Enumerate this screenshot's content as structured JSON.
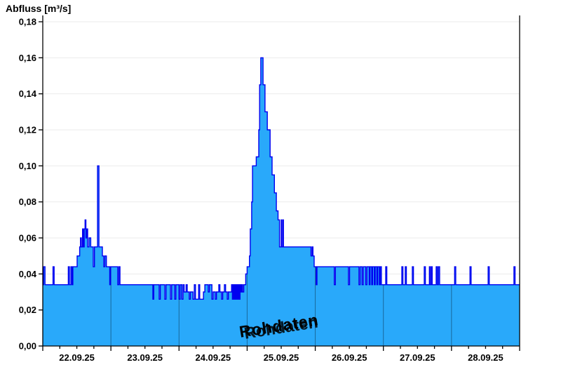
{
  "header": {
    "title": "Abfluss [m³/s]"
  },
  "watermark": {
    "text": "Rohdaten",
    "rotation_deg": -9
  },
  "colors": {
    "background": "#FFFFFF",
    "area_fill": "#29A9FA",
    "area_line": "#0000F0",
    "h_grid": "#EBEBEB",
    "day_line_on_fill": "rgba(0,0,0,0.38)",
    "axis": "#000000",
    "watermark_fill": "#FFFFFF",
    "watermark_shadow": "#4D4D4D"
  },
  "chart_data": {
    "type": "area",
    "title": "Abfluss [m³/s]",
    "ylabel": "Abfluss [m³/s]",
    "annotation": "Rohdaten",
    "grid": {
      "horizontal": true,
      "vertical_day_lines_over_fill": true
    },
    "y_axis": {
      "min": 0.0,
      "max": 0.18,
      "tick_step": 0.02,
      "tick_labels": [
        "0,00",
        "0,02",
        "0,04",
        "0,06",
        "0,08",
        "0,10",
        "0,12",
        "0,14",
        "0,16",
        "0,18"
      ]
    },
    "x_axis": {
      "day_labels": [
        "22.09.25",
        "23.09.25",
        "24.09.25",
        "25.09.25",
        "26.09.25",
        "27.09.25",
        "28.09.25"
      ],
      "range_hours": [
        0,
        168
      ],
      "x_unit": "hours since 22.09.25 00:00",
      "major_tick_hours": 24,
      "minor_tick_hours": 6
    },
    "series": [
      {
        "name": "Abfluss Rohdaten",
        "unit": "m³/s",
        "step": true,
        "points": [
          [
            0,
            0.034
          ],
          [
            0.3,
            0.044
          ],
          [
            0.8,
            0.034
          ],
          [
            3.6,
            0.044
          ],
          [
            4.0,
            0.034
          ],
          [
            9.0,
            0.044
          ],
          [
            9.4,
            0.034
          ],
          [
            9.9,
            0.044
          ],
          [
            10.3,
            0.034
          ],
          [
            10.6,
            0.044
          ],
          [
            12.1,
            0.05
          ],
          [
            13.0,
            0.055
          ],
          [
            13.3,
            0.06
          ],
          [
            13.6,
            0.055
          ],
          [
            14.0,
            0.065
          ],
          [
            14.3,
            0.055
          ],
          [
            14.6,
            0.065
          ],
          [
            14.9,
            0.07
          ],
          [
            15.2,
            0.06
          ],
          [
            15.5,
            0.065
          ],
          [
            15.8,
            0.055
          ],
          [
            16.3,
            0.06
          ],
          [
            16.9,
            0.055
          ],
          [
            17.8,
            0.044
          ],
          [
            18.2,
            0.055
          ],
          [
            19.3,
            0.1
          ],
          [
            19.8,
            0.055
          ],
          [
            21.0,
            0.05
          ],
          [
            21.5,
            0.044
          ],
          [
            21.9,
            0.05
          ],
          [
            22.4,
            0.044
          ],
          [
            23.6,
            0.034
          ],
          [
            23.9,
            0.044
          ],
          [
            26.4,
            0.034
          ],
          [
            26.8,
            0.044
          ],
          [
            27.2,
            0.034
          ],
          [
            38.8,
            0.026
          ],
          [
            39.1,
            0.034
          ],
          [
            41.0,
            0.026
          ],
          [
            41.4,
            0.034
          ],
          [
            43.0,
            0.026
          ],
          [
            43.4,
            0.034
          ],
          [
            45.0,
            0.026
          ],
          [
            45.4,
            0.034
          ],
          [
            46.5,
            0.026
          ],
          [
            46.9,
            0.034
          ],
          [
            48.0,
            0.026
          ],
          [
            48.4,
            0.034
          ],
          [
            49.0,
            0.026
          ],
          [
            49.4,
            0.034
          ],
          [
            49.8,
            0.03
          ],
          [
            50.5,
            0.034
          ],
          [
            50.9,
            0.03
          ],
          [
            51.6,
            0.026
          ],
          [
            52.0,
            0.03
          ],
          [
            52.9,
            0.026
          ],
          [
            53.4,
            0.034
          ],
          [
            53.8,
            0.026
          ],
          [
            54.9,
            0.034
          ],
          [
            55.3,
            0.026
          ],
          [
            56.6,
            0.03
          ],
          [
            57.1,
            0.034
          ],
          [
            58.3,
            0.03
          ],
          [
            58.7,
            0.034
          ],
          [
            59.6,
            0.026
          ],
          [
            60.0,
            0.03
          ],
          [
            60.8,
            0.026
          ],
          [
            61.2,
            0.03
          ],
          [
            62.0,
            0.034
          ],
          [
            62.4,
            0.03
          ],
          [
            63.0,
            0.026
          ],
          [
            63.4,
            0.03
          ],
          [
            64.0,
            0.034
          ],
          [
            64.4,
            0.03
          ],
          [
            65.0,
            0.026
          ],
          [
            65.4,
            0.03
          ],
          [
            66.5,
            0.034
          ],
          [
            66.8,
            0.026
          ],
          [
            67.1,
            0.034
          ],
          [
            67.4,
            0.026
          ],
          [
            67.7,
            0.034
          ],
          [
            68.0,
            0.026
          ],
          [
            68.3,
            0.034
          ],
          [
            68.6,
            0.026
          ],
          [
            68.9,
            0.034
          ],
          [
            69.2,
            0.026
          ],
          [
            69.5,
            0.034
          ],
          [
            69.8,
            0.03
          ],
          [
            70.1,
            0.034
          ],
          [
            70.4,
            0.03
          ],
          [
            70.8,
            0.034
          ],
          [
            71.5,
            0.04
          ],
          [
            72.0,
            0.044
          ],
          [
            72.8,
            0.05
          ],
          [
            73.1,
            0.065
          ],
          [
            73.6,
            0.08
          ],
          [
            73.9,
            0.1
          ],
          [
            75.2,
            0.105
          ],
          [
            76.1,
            0.12
          ],
          [
            76.4,
            0.145
          ],
          [
            76.8,
            0.16
          ],
          [
            77.6,
            0.145
          ],
          [
            78.3,
            0.13
          ],
          [
            79.1,
            0.12
          ],
          [
            80.1,
            0.105
          ],
          [
            80.8,
            0.095
          ],
          [
            81.6,
            0.085
          ],
          [
            82.3,
            0.075
          ],
          [
            82.9,
            0.07
          ],
          [
            83.4,
            0.055
          ],
          [
            84.0,
            0.07
          ],
          [
            84.2,
            0.055
          ],
          [
            84.6,
            0.07
          ],
          [
            84.8,
            0.055
          ],
          [
            94.5,
            0.05
          ],
          [
            94.9,
            0.055
          ],
          [
            95.2,
            0.05
          ],
          [
            95.6,
            0.044
          ],
          [
            96.3,
            0.034
          ],
          [
            96.6,
            0.044
          ],
          [
            102.7,
            0.034
          ],
          [
            103.1,
            0.044
          ],
          [
            107.7,
            0.034
          ],
          [
            108.1,
            0.044
          ],
          [
            111.4,
            0.034
          ],
          [
            111.8,
            0.044
          ],
          [
            112.5,
            0.034
          ],
          [
            112.9,
            0.044
          ],
          [
            113.8,
            0.034
          ],
          [
            114.2,
            0.044
          ],
          [
            115.0,
            0.034
          ],
          [
            115.3,
            0.044
          ],
          [
            115.9,
            0.034
          ],
          [
            116.2,
            0.044
          ],
          [
            116.8,
            0.034
          ],
          [
            117.1,
            0.044
          ],
          [
            117.7,
            0.034
          ],
          [
            118.0,
            0.044
          ],
          [
            118.6,
            0.034
          ],
          [
            118.9,
            0.044
          ],
          [
            119.3,
            0.034
          ],
          [
            120.8,
            0.044
          ],
          [
            121.2,
            0.034
          ],
          [
            126.5,
            0.044
          ],
          [
            126.9,
            0.034
          ],
          [
            127.7,
            0.044
          ],
          [
            128.1,
            0.034
          ],
          [
            130.2,
            0.044
          ],
          [
            130.6,
            0.034
          ],
          [
            134.4,
            0.044
          ],
          [
            134.8,
            0.034
          ],
          [
            136.2,
            0.044
          ],
          [
            136.5,
            0.034
          ],
          [
            136.9,
            0.044
          ],
          [
            137.2,
            0.034
          ],
          [
            138.6,
            0.044
          ],
          [
            139.0,
            0.034
          ],
          [
            139.4,
            0.044
          ],
          [
            139.8,
            0.034
          ],
          [
            145.1,
            0.044
          ],
          [
            145.5,
            0.034
          ],
          [
            150.5,
            0.044
          ],
          [
            150.9,
            0.034
          ],
          [
            156.9,
            0.044
          ],
          [
            157.3,
            0.034
          ],
          [
            166.0,
            0.044
          ],
          [
            166.4,
            0.034
          ],
          [
            168,
            0.034
          ]
        ]
      }
    ]
  }
}
